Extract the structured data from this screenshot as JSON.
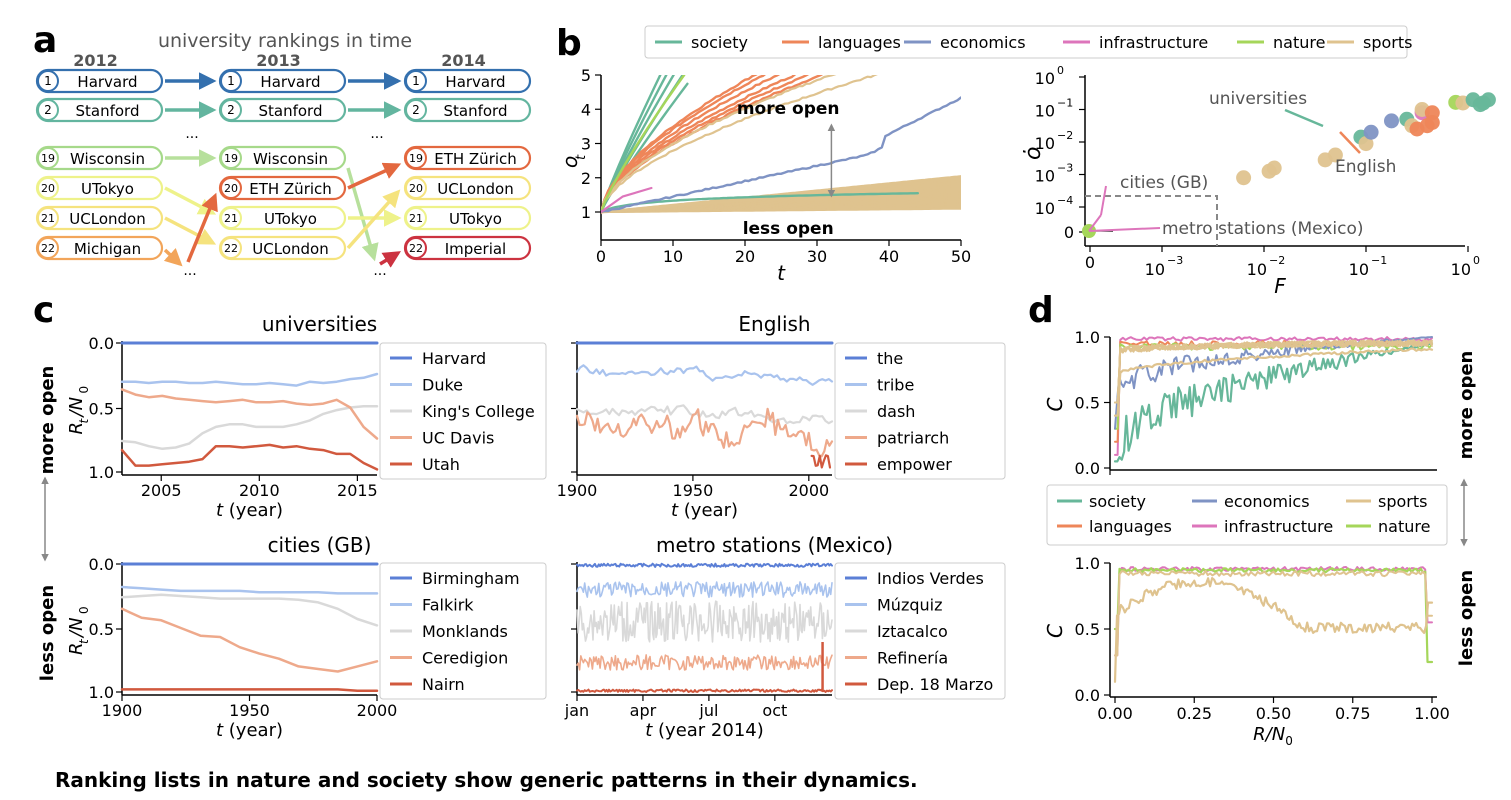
{
  "caption": "Ranking lists in nature and society show generic patterns in their dynamics.",
  "colors": {
    "society": "#67b79a",
    "languages": "#ee8659",
    "economics": "#7f93c4",
    "infrastructure": "#dd75bb",
    "nature": "#a5d65a",
    "sports": "#dfc38f",
    "rank1": "#3470ae",
    "rank2": "#63b59f",
    "rank19": "#a6d98a",
    "rank20": "#f2f7a0",
    "rank21": "#f6e58a",
    "rank22": "#f2a55a",
    "eth": "#e3683f",
    "imperial": "#cc3340"
  },
  "panel_a": {
    "label": "a",
    "title": "university rankings in time",
    "years": [
      "2012",
      "2013",
      "2014"
    ],
    "columns": [
      {
        "top": [
          {
            "rank": "1",
            "name": "Harvard"
          },
          {
            "rank": "2",
            "name": "Stanford"
          }
        ],
        "bottom": [
          {
            "rank": "19",
            "name": "Wisconsin"
          },
          {
            "rank": "20",
            "name": "UTokyo"
          },
          {
            "rank": "21",
            "name": "UCLondon"
          },
          {
            "rank": "22",
            "name": "Michigan"
          }
        ]
      },
      {
        "top": [
          {
            "rank": "1",
            "name": "Harvard"
          },
          {
            "rank": "2",
            "name": "Stanford"
          }
        ],
        "bottom": [
          {
            "rank": "19",
            "name": "Wisconsin"
          },
          {
            "rank": "20",
            "name": "ETH Zürich"
          },
          {
            "rank": "21",
            "name": "UTokyo"
          },
          {
            "rank": "22",
            "name": "UCLondon"
          }
        ]
      },
      {
        "top": [
          {
            "rank": "1",
            "name": "Harvard"
          },
          {
            "rank": "2",
            "name": "Stanford"
          }
        ],
        "bottom": [
          {
            "rank": "19",
            "name": "ETH Zürich"
          },
          {
            "rank": "20",
            "name": "UCLondon"
          },
          {
            "rank": "21",
            "name": "UTokyo"
          },
          {
            "rank": "22",
            "name": "Imperial"
          }
        ]
      }
    ],
    "ellipsis": "..."
  },
  "panel_b": {
    "label": "b",
    "legend": [
      "society",
      "languages",
      "economics",
      "infrastructure",
      "nature",
      "sports"
    ],
    "left": {
      "ylabel": "o",
      "ylabel_sub": "t",
      "xlabel": "t",
      "xticks": [
        "0",
        "10",
        "20",
        "30",
        "40",
        "50"
      ],
      "yticks": [
        "1",
        "2",
        "3",
        "4",
        "5"
      ],
      "annot_more": "more open",
      "annot_less": "less open"
    },
    "right": {
      "ylabel": "ȯ",
      "xlabel": "F",
      "yticks": [
        {
          "b": "10",
          "e": "0"
        },
        {
          "b": "10",
          "e": "−1"
        },
        {
          "b": "10",
          "e": "−2"
        },
        {
          "b": "10",
          "e": "−3"
        },
        {
          "b": "10",
          "e": "−4"
        }
      ],
      "ytick_zero": "0",
      "xtick_zero": "0",
      "xticks": [
        {
          "b": "10",
          "e": "−3"
        },
        {
          "b": "10",
          "e": "−2"
        },
        {
          "b": "10",
          "e": "−1"
        },
        {
          "b": "10",
          "e": "0"
        }
      ],
      "labels": {
        "universities": "universities",
        "english": "English",
        "cities": "cities (GB)",
        "metro": "metro stations (Mexico)"
      }
    }
  },
  "panel_c": {
    "label": "c",
    "side_more": "more open",
    "side_less": "less open",
    "ylabel": "R",
    "ylabel_sub": "t",
    "ylabel_den": "/N",
    "ylabel_den_sub": "0",
    "yticks": [
      "0.0",
      "0.5",
      "1.0"
    ],
    "subplots": [
      {
        "title": "universities",
        "xlabel_var": "t",
        "xlabel_rest": " (year)",
        "xticks": [
          "2005",
          "2010",
          "2015"
        ],
        "legend": [
          "Harvard",
          "Duke",
          "King's College",
          "UC Davis",
          "Utah"
        ]
      },
      {
        "title": "English",
        "xlabel_var": "t",
        "xlabel_rest": " (year)",
        "xticks": [
          "1900",
          "1950",
          "2000"
        ],
        "legend": [
          "the",
          "tribe",
          "dash",
          "patriarch",
          "empower"
        ]
      },
      {
        "title": "cities (GB)",
        "xlabel_var": "t",
        "xlabel_rest": " (year)",
        "xticks": [
          "1900",
          "1950",
          "2000"
        ],
        "legend": [
          "Birmingham",
          "Falkirk",
          "Monklands",
          "Ceredigion",
          "Nairn"
        ]
      },
      {
        "title": "metro stations (Mexico)",
        "xlabel_var": "t",
        "xlabel_rest": " (year 2014)",
        "xticks": [
          "jan",
          "apr",
          "jul",
          "oct"
        ],
        "legend": [
          "Indios Verdes",
          "Múzquiz",
          "Iztacalco",
          "Refinería",
          "Dep. 18 Marzo"
        ]
      }
    ],
    "line_colors": [
      "#5b7fd6",
      "#a9c3ee",
      "#d9d9d9",
      "#eea98b",
      "#d1593e"
    ]
  },
  "panel_d": {
    "label": "d",
    "ylabel": "C",
    "xlabel": "R/N",
    "xlabel_sub": "0",
    "yticks": [
      "0.0",
      "0.5",
      "1.0"
    ],
    "xticks": [
      "0.00",
      "0.25",
      "0.50",
      "0.75",
      "1.00"
    ],
    "side_more": "more open",
    "side_less": "less open",
    "legend": [
      "society",
      "economics",
      "sports",
      "languages",
      "infrastructure",
      "nature"
    ]
  }
}
